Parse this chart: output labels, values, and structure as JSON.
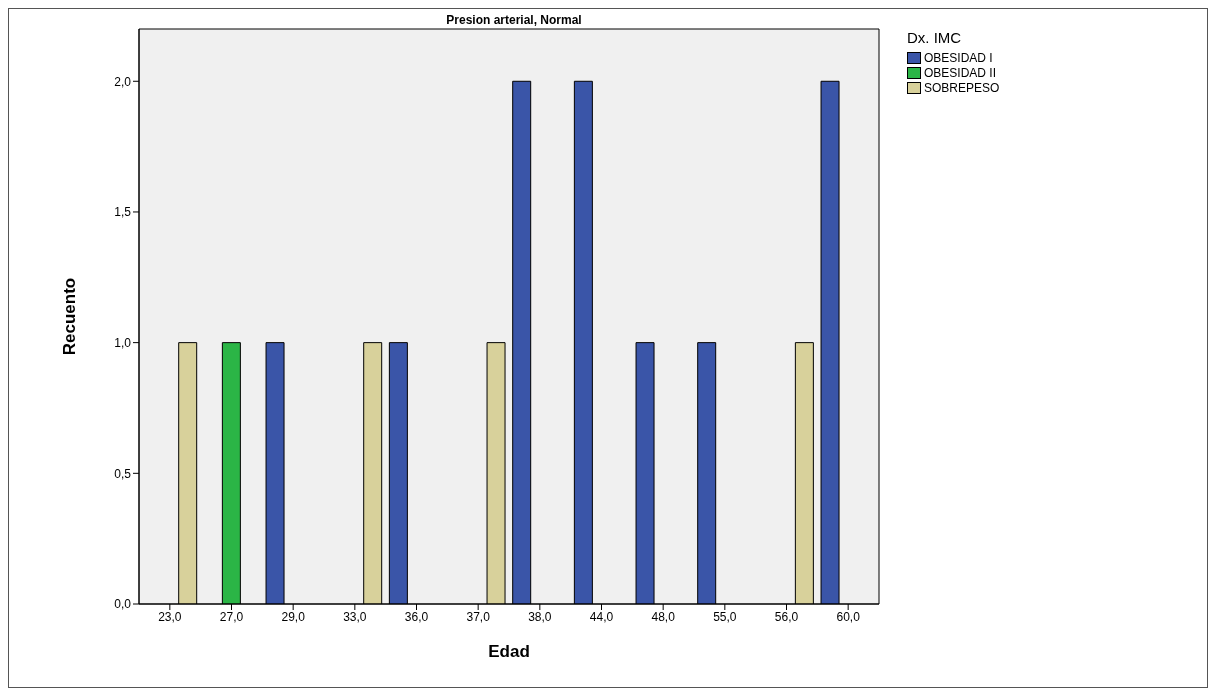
{
  "chart_data": {
    "type": "bar",
    "title": "Presion arterial, Normal",
    "xlabel": "Edad",
    "ylabel": "Recuento",
    "legend_title": "Dx. IMC",
    "categories": [
      "23,0",
      "27,0",
      "29,0",
      "33,0",
      "36,0",
      "37,0",
      "38,0",
      "44,0",
      "48,0",
      "55,0",
      "56,0",
      "60,0"
    ],
    "series": [
      {
        "name": "OBESIDAD I",
        "color": "#3a55a8",
        "values": [
          0,
          0,
          1,
          0,
          1,
          0,
          2,
          2,
          1,
          1,
          0,
          2
        ]
      },
      {
        "name": "OBESIDAD II",
        "color": "#2bb546",
        "values": [
          0,
          1,
          0,
          0,
          0,
          0,
          0,
          0,
          0,
          0,
          0,
          0
        ]
      },
      {
        "name": "SOBREPESO",
        "color": "#d8d19b",
        "values": [
          1,
          0,
          0,
          1,
          0,
          1,
          0,
          0,
          0,
          0,
          1,
          0
        ]
      }
    ],
    "ylim": [
      0,
      2.2
    ],
    "yticks": [
      {
        "value": 0,
        "label": "0,0"
      },
      {
        "value": 0.5,
        "label": "0,5"
      },
      {
        "value": 1,
        "label": "1,0"
      },
      {
        "value": 1.5,
        "label": "1,5"
      },
      {
        "value": 2,
        "label": "2,0"
      }
    ],
    "grid": false,
    "legend": "top right"
  }
}
